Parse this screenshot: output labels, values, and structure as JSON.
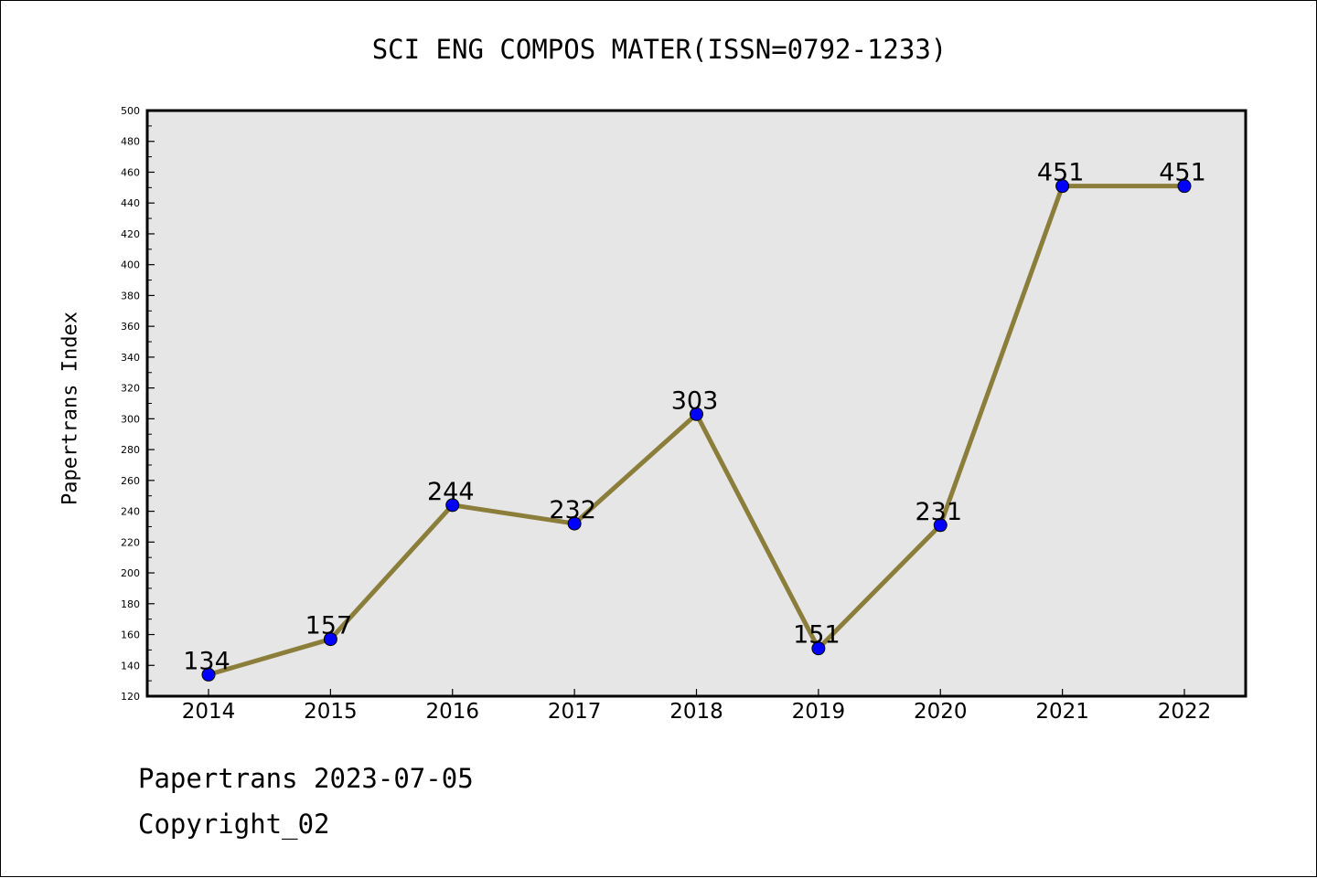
{
  "chart_data": {
    "type": "line",
    "title": "SCI ENG COMPOS MATER(ISSN=0792-1233)",
    "xlabel": "",
    "ylabel": "Papertrans Index",
    "categories": [
      "2014",
      "2015",
      "2016",
      "2017",
      "2018",
      "2019",
      "2020",
      "2021",
      "2022"
    ],
    "series": [
      {
        "values": [
          134,
          157,
          244,
          232,
          303,
          151,
          231,
          451,
          451
        ]
      }
    ],
    "ylim": [
      120,
      500
    ],
    "yticks": [
      "120",
      "140",
      "160",
      "180",
      "200",
      "220",
      "240",
      "260",
      "280",
      "300",
      "320",
      "340",
      "360",
      "380",
      "400",
      "420",
      "440",
      "460",
      "480",
      "500"
    ],
    "data_labels": [
      "134",
      "157",
      "244",
      "232",
      "303",
      "151",
      "231",
      "451",
      "451"
    ],
    "grid": false,
    "legend": "none",
    "colors": {
      "plot_background": "#e6e6e6",
      "line": "#8b7d3a",
      "marker": "#0000ff"
    }
  },
  "footer": {
    "source": "Papertrans 2023-07-05",
    "copyright": "Copyright_02"
  }
}
